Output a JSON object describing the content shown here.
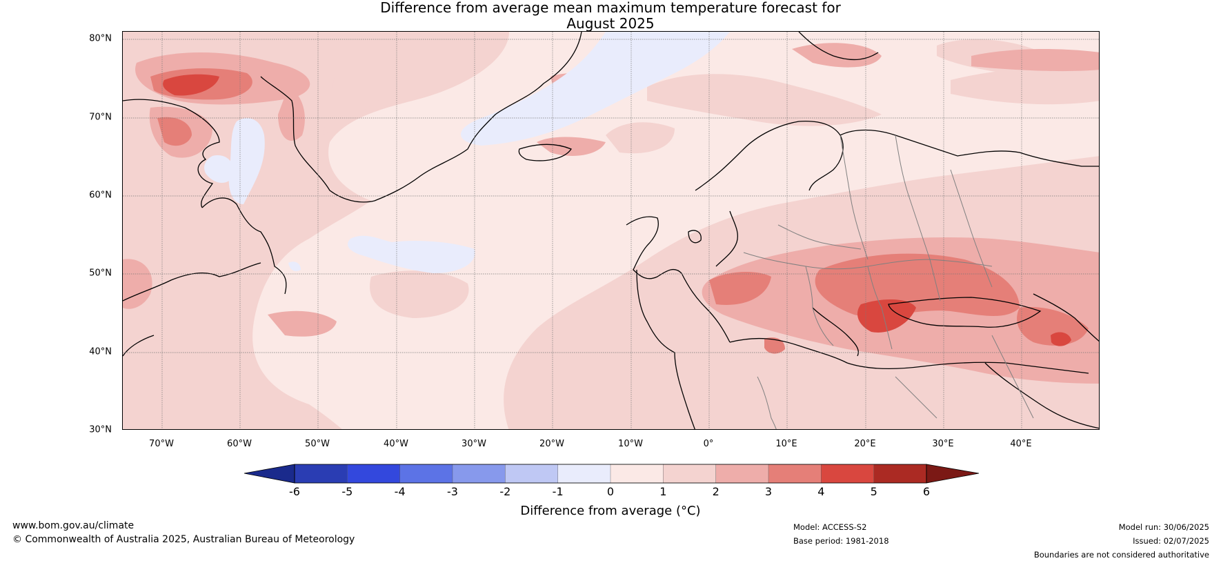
{
  "title": {
    "line1": "Difference from average mean maximum temperature forecast for",
    "line2": "August 2025"
  },
  "map": {
    "extent": {
      "lon_min": -75,
      "lon_max": 50,
      "lat_min": 30,
      "lat_max": 81
    },
    "lat_labels": [
      {
        "lat": 80,
        "text": "80°N"
      },
      {
        "lat": 70,
        "text": "70°N"
      },
      {
        "lat": 60,
        "text": "60°N"
      },
      {
        "lat": 50,
        "text": "50°N"
      },
      {
        "lat": 40,
        "text": "40°N"
      },
      {
        "lat": 30,
        "text": "30°N"
      }
    ],
    "lon_labels": [
      {
        "lon": -70,
        "text": "70°W"
      },
      {
        "lon": -60,
        "text": "60°W"
      },
      {
        "lon": -50,
        "text": "50°W"
      },
      {
        "lon": -40,
        "text": "40°W"
      },
      {
        "lon": -30,
        "text": "30°W"
      },
      {
        "lon": -20,
        "text": "20°W"
      },
      {
        "lon": -10,
        "text": "10°W"
      },
      {
        "lon": 0,
        "text": "0°"
      },
      {
        "lon": 10,
        "text": "10°E"
      },
      {
        "lon": 20,
        "text": "20°E"
      },
      {
        "lon": 30,
        "text": "30°E"
      },
      {
        "lon": 40,
        "text": "40°E"
      }
    ],
    "colors": {
      "ocean_base": "#fbe9e6",
      "level_neg1": "#e9ecfc",
      "level_1": "#f4d3d0",
      "level_2": "#eeadaa",
      "level_3": "#e57f78",
      "level_4": "#d9473f",
      "coast": "#000000",
      "border": "#808080",
      "grid": "#777777"
    }
  },
  "colorbar": {
    "label": "Difference from average (°C)",
    "ticks": [
      "-6",
      "-5",
      "-4",
      "-3",
      "-2",
      "-1",
      "0",
      "1",
      "2",
      "3",
      "4",
      "5",
      "6"
    ],
    "under_color": "#1a2a8c",
    "over_color": "#7b1915",
    "bins": [
      "#2a3db3",
      "#3348dd",
      "#5c73e6",
      "#8799ec",
      "#bfc8f4",
      "#e9ecfc",
      "#fbe9e6",
      "#f4d3d0",
      "#eeadaa",
      "#e57f78",
      "#d9473f",
      "#ab2a23"
    ]
  },
  "footer": {
    "site": "www.bom.gov.au/climate",
    "copyright": "© Commonwealth of Australia 2025, Australian Bureau of Meteorology",
    "model": "Model: ACCESS-S2",
    "base_period": "Base period: 1981-2018",
    "model_run": "Model run: 30/06/2025",
    "issued": "Issued: 02/07/2025",
    "boundaries": "Boundaries are not considered authoritative"
  }
}
